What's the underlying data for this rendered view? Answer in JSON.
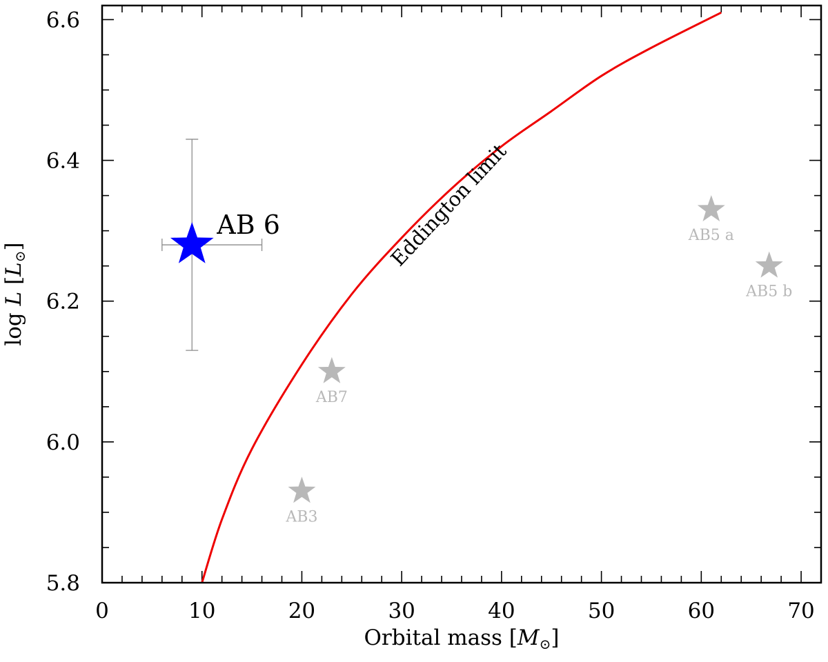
{
  "chart_data": {
    "type": "scatter",
    "xlabel": "Orbital mass [M⊙]",
    "xlabel_text": "Orbital mass [",
    "xlabel_symbol": "M",
    "xlabel_close": "]",
    "ylabel_prefix": "log ",
    "ylabel_var": "L",
    "ylabel_open": " [",
    "ylabel_sym": "L",
    "ylabel_close": "]",
    "sun_symbol": "⊙",
    "xlim": [
      0,
      72
    ],
    "ylim": [
      5.8,
      6.62
    ],
    "x_ticks": [
      "0",
      "10",
      "20",
      "30",
      "40",
      "50",
      "60",
      "70"
    ],
    "x_tick_values": [
      0,
      10,
      20,
      30,
      40,
      50,
      60,
      70
    ],
    "y_ticks": [
      "5.8",
      "6.0",
      "6.2",
      "6.4",
      "6.6"
    ],
    "y_tick_values": [
      5.8,
      6.0,
      6.2,
      6.4,
      6.6
    ],
    "highlight": {
      "label": "AB 6",
      "x": 9,
      "y": 6.28,
      "x_err": [
        6,
        16
      ],
      "y_err": [
        6.13,
        6.43
      ],
      "color": "#0000ff"
    },
    "comparison": [
      {
        "label": "AB7",
        "x": 23,
        "y": 6.1
      },
      {
        "label": "AB3",
        "x": 20,
        "y": 5.93
      },
      {
        "label": "AB5 a",
        "x": 61,
        "y": 6.33
      },
      {
        "label": "AB5 b",
        "x": 66.8,
        "y": 6.25
      }
    ],
    "comparison_color": "#b8b8b8",
    "curve": {
      "label": "Eddington limit",
      "color": "#ee0000",
      "points": [
        [
          10,
          5.8
        ],
        [
          12,
          5.89
        ],
        [
          15,
          5.99
        ],
        [
          20,
          6.11
        ],
        [
          25,
          6.21
        ],
        [
          30,
          6.29
        ],
        [
          35,
          6.36
        ],
        [
          40,
          6.42
        ],
        [
          45,
          6.47
        ],
        [
          50,
          6.52
        ],
        [
          55,
          6.56
        ],
        [
          62,
          6.61
        ]
      ]
    },
    "grid": false,
    "legend": "none"
  }
}
